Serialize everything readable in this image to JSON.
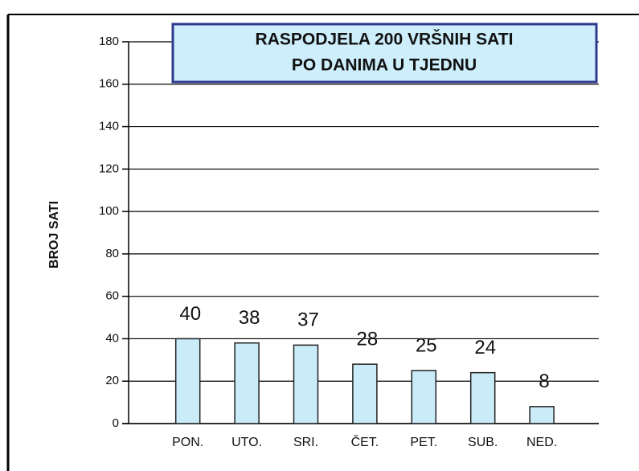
{
  "chart_data": {
    "type": "bar",
    "title": [
      "RASPODJELA 200 VRŠNIH SATI",
      "PO DANIMA U TJEDNU"
    ],
    "y_label": "BROJ SATI",
    "categories": [
      "PON.",
      "UTO.",
      "SRI.",
      "ČET.",
      "PET.",
      "SUB.",
      "NED."
    ],
    "values": [
      40,
      38,
      37,
      28,
      25,
      24,
      8
    ],
    "color": "#c9ecf8",
    "ylim": [
      0,
      180
    ],
    "yticks": [
      0,
      20,
      40,
      60,
      80,
      100,
      120,
      140,
      160,
      180
    ],
    "grid": true
  }
}
